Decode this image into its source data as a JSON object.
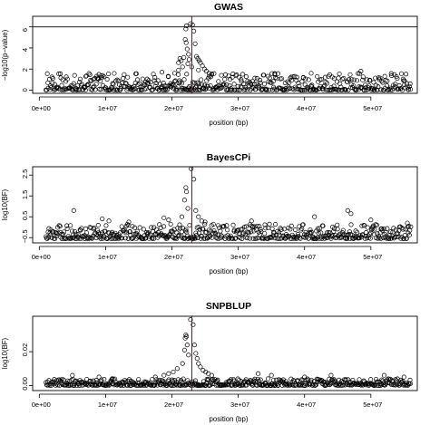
{
  "figure": {
    "panels": [
      {
        "title": "GWAS",
        "ylabel": "−log10(p−value)",
        "xlabel": "position (bp)",
        "yticks": [
          "0",
          "2",
          "4",
          "6"
        ]
      },
      {
        "title": "BayesCPi",
        "ylabel": "log10(BF)",
        "xlabel": "position (bp)",
        "yticks": [
          "−0.5",
          "0.5",
          "1.5",
          "2.5"
        ]
      },
      {
        "title": "SNPBLUP",
        "ylabel": "log10(BF)",
        "xlabel": "position (bp)",
        "yticks": [
          "0.00",
          "0.02"
        ]
      }
    ],
    "xticks": [
      "0e+00",
      "1e+07",
      "2e+07",
      "3e+07",
      "4e+07",
      "5e+07"
    ]
  },
  "chart_data": [
    {
      "type": "scatter",
      "title": "GWAS",
      "xlabel": "position (bp)",
      "ylabel": "−log10(p−value)",
      "xlim": [
        -1000000,
        57000000
      ],
      "ylim": [
        -0.3,
        7.0
      ],
      "yticks": [
        0,
        2,
        4,
        6
      ],
      "xticks": [
        0,
        10000000,
        20000000,
        30000000,
        40000000,
        50000000
      ],
      "threshold_line": 6.0,
      "vertical_line_x": 23000000,
      "vertical_line_color": "#cc0000",
      "marker": "open-circle",
      "background_noise": {
        "x_start": 1000000,
        "x_end": 56000000,
        "y_min": 0.0,
        "y_max": 1.6
      },
      "peak_points": [
        {
          "x": 21000000,
          "y": 2.6
        },
        {
          "x": 21200000,
          "y": 3.0
        },
        {
          "x": 21400000,
          "y": 2.8
        },
        {
          "x": 21600000,
          "y": 2.2
        },
        {
          "x": 21800000,
          "y": 3.1
        },
        {
          "x": 22000000,
          "y": 4.8
        },
        {
          "x": 22100000,
          "y": 5.8
        },
        {
          "x": 22200000,
          "y": 6.1
        },
        {
          "x": 22150000,
          "y": 4.5
        },
        {
          "x": 22300000,
          "y": 3.9
        },
        {
          "x": 22400000,
          "y": 2.5
        },
        {
          "x": 22600000,
          "y": 2.9
        },
        {
          "x": 22800000,
          "y": 6.3
        },
        {
          "x": 23100000,
          "y": 6.2
        },
        {
          "x": 23300000,
          "y": 5.6
        },
        {
          "x": 23500000,
          "y": 4.4
        },
        {
          "x": 23700000,
          "y": 3.2
        },
        {
          "x": 23900000,
          "y": 3.0
        },
        {
          "x": 24100000,
          "y": 2.8
        },
        {
          "x": 24300000,
          "y": 2.6
        },
        {
          "x": 24600000,
          "y": 2.3
        },
        {
          "x": 24900000,
          "y": 2.0
        },
        {
          "x": 25200000,
          "y": 1.8
        },
        {
          "x": 25600000,
          "y": 1.6
        },
        {
          "x": 26000000,
          "y": 1.5
        },
        {
          "x": 21000000,
          "y": 1.9
        },
        {
          "x": 20400000,
          "y": 1.6
        },
        {
          "x": 22500000,
          "y": 3.4
        },
        {
          "x": 23000000,
          "y": 2.2
        },
        {
          "x": 24000000,
          "y": 1.9
        },
        {
          "x": 9000000,
          "y": 1.5
        },
        {
          "x": 7000000,
          "y": 1.3
        },
        {
          "x": 18500000,
          "y": 1.7
        },
        {
          "x": 35500000,
          "y": 1.5
        },
        {
          "x": 41000000,
          "y": 1.6
        },
        {
          "x": 48500000,
          "y": 1.8
        }
      ]
    },
    {
      "type": "scatter",
      "title": "BayesCPi",
      "xlabel": "position (bp)",
      "ylabel": "log10(BF)",
      "xlim": [
        -1000000,
        57000000
      ],
      "ylim": [
        -0.75,
        2.9
      ],
      "yticks": [
        -0.5,
        0.5,
        1.5,
        2.5
      ],
      "xticks": [
        0,
        10000000,
        20000000,
        30000000,
        40000000,
        50000000
      ],
      "vertical_line_x": 23000000,
      "vertical_line_color": "#cc0000",
      "marker": "open-circle",
      "background_noise": {
        "x_start": 1000000,
        "x_end": 56000000,
        "y_min": -0.55,
        "y_max": 0.15
      },
      "peak_points": [
        {
          "x": 21900000,
          "y": 1.3
        },
        {
          "x": 22100000,
          "y": 1.9
        },
        {
          "x": 22200000,
          "y": 1.7
        },
        {
          "x": 22900000,
          "y": 2.8
        },
        {
          "x": 23300000,
          "y": 2.3
        },
        {
          "x": 23600000,
          "y": 0.8
        },
        {
          "x": 22400000,
          "y": 0.9
        },
        {
          "x": 21500000,
          "y": 0.5
        },
        {
          "x": 24000000,
          "y": 0.5
        },
        {
          "x": 24500000,
          "y": 0.3
        },
        {
          "x": 25000000,
          "y": 0.25
        },
        {
          "x": 5200000,
          "y": 0.8
        },
        {
          "x": 9500000,
          "y": 0.4
        },
        {
          "x": 10500000,
          "y": 0.3
        },
        {
          "x": 13500000,
          "y": 0.25
        },
        {
          "x": 18800000,
          "y": 0.45
        },
        {
          "x": 19500000,
          "y": 0.35
        },
        {
          "x": 32000000,
          "y": 0.3
        },
        {
          "x": 41500000,
          "y": 0.5
        },
        {
          "x": 46500000,
          "y": 0.8
        },
        {
          "x": 47000000,
          "y": 0.65
        },
        {
          "x": 50000000,
          "y": 0.35
        },
        {
          "x": 55500000,
          "y": 0.2
        }
      ]
    },
    {
      "type": "scatter",
      "title": "SNPBLUP",
      "xlabel": "position (bp)",
      "ylabel": "log10(BF)",
      "xlim": [
        -1000000,
        57000000
      ],
      "ylim": [
        -0.003,
        0.041
      ],
      "yticks": [
        0.0,
        0.02
      ],
      "xticks": [
        0,
        10000000,
        20000000,
        30000000,
        40000000,
        50000000
      ],
      "vertical_line_x": 23000000,
      "vertical_line_color": "#cc0000",
      "marker": "open-circle",
      "background_noise": {
        "x_start": 1000000,
        "x_end": 56000000,
        "y_min": 0.0,
        "y_max": 0.004
      },
      "peak_points": [
        {
          "x": 21600000,
          "y": 0.013
        },
        {
          "x": 21900000,
          "y": 0.021
        },
        {
          "x": 22000000,
          "y": 0.028
        },
        {
          "x": 22100000,
          "y": 0.03
        },
        {
          "x": 22200000,
          "y": 0.029
        },
        {
          "x": 22300000,
          "y": 0.024
        },
        {
          "x": 22500000,
          "y": 0.018
        },
        {
          "x": 22800000,
          "y": 0.039
        },
        {
          "x": 23200000,
          "y": 0.036
        },
        {
          "x": 23400000,
          "y": 0.024
        },
        {
          "x": 23600000,
          "y": 0.019
        },
        {
          "x": 23800000,
          "y": 0.016
        },
        {
          "x": 24000000,
          "y": 0.013
        },
        {
          "x": 24300000,
          "y": 0.011
        },
        {
          "x": 24700000,
          "y": 0.009
        },
        {
          "x": 25100000,
          "y": 0.008
        },
        {
          "x": 25500000,
          "y": 0.007
        },
        {
          "x": 26000000,
          "y": 0.006
        },
        {
          "x": 20800000,
          "y": 0.01
        },
        {
          "x": 20200000,
          "y": 0.008
        },
        {
          "x": 19500000,
          "y": 0.007
        },
        {
          "x": 18800000,
          "y": 0.006
        },
        {
          "x": 17500000,
          "y": 0.005
        },
        {
          "x": 5000000,
          "y": 0.006
        },
        {
          "x": 9000000,
          "y": 0.005
        },
        {
          "x": 11000000,
          "y": 0.004
        },
        {
          "x": 33000000,
          "y": 0.007
        },
        {
          "x": 35000000,
          "y": 0.006
        },
        {
          "x": 40000000,
          "y": 0.005
        },
        {
          "x": 44000000,
          "y": 0.006
        },
        {
          "x": 52000000,
          "y": 0.006
        },
        {
          "x": 55000000,
          "y": 0.005
        }
      ]
    }
  ]
}
